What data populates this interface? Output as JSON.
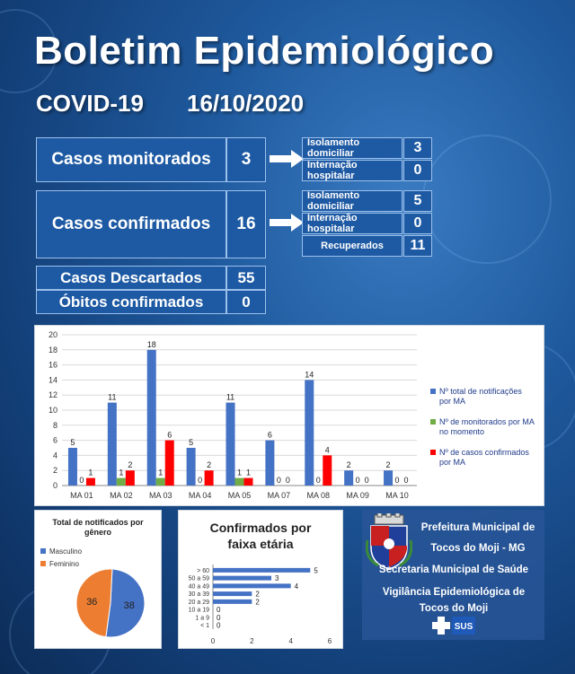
{
  "title": "Boletim Epidemiológico",
  "subtitle_left": "COVID-19",
  "subtitle_date": "16/10/2020",
  "monitorados": {
    "label": "Casos monitorados",
    "value": "3",
    "isolamento_label": "Isolamento domiciliar",
    "isolamento_value": "3",
    "internacao_label": "Internação hospitalar",
    "internacao_value": "0"
  },
  "confirmados": {
    "label": "Casos confirmados",
    "value": "16",
    "isolamento_label": "Isolamento domiciliar",
    "isolamento_value": "5",
    "internacao_label": "Internação hospitalar",
    "internacao_value": "0",
    "recuperados_label": "Recuperados",
    "recuperados_value": "11"
  },
  "descartados": {
    "label": "Casos Descartados",
    "value": "55"
  },
  "obitos": {
    "label": "Óbitos confirmados",
    "value": "0"
  },
  "colors": {
    "blue": "#4472c4",
    "green": "#70ad47",
    "red": "#ff0000",
    "orange": "#ed7d31",
    "bg": "#1f5a9e"
  },
  "chart_data": [
    {
      "type": "bar",
      "categories": [
        "MA 01",
        "MA 02",
        "MA 03",
        "MA 04",
        "MA 05",
        "MA 07",
        "MA 08",
        "MA 09",
        "MA 10"
      ],
      "series": [
        {
          "name": "Nº total de notificações por MA",
          "values": [
            5,
            11,
            18,
            5,
            11,
            6,
            14,
            2,
            2
          ]
        },
        {
          "name": "Nº de monitorados por MA no momento",
          "values": [
            0,
            1,
            1,
            0,
            1,
            0,
            0,
            0,
            0
          ]
        },
        {
          "name": "Nº de casos confirmados por MA",
          "values": [
            1,
            2,
            6,
            2,
            1,
            0,
            4,
            0,
            0
          ]
        }
      ],
      "ylim": [
        0,
        20
      ],
      "yticks": [
        0,
        2,
        4,
        6,
        8,
        10,
        12,
        14,
        16,
        18,
        20
      ],
      "legend": "right"
    },
    {
      "type": "pie",
      "title": "Total de notificados por gênero",
      "labels": [
        "Masculino",
        "Feminino"
      ],
      "values": [
        38,
        36
      ],
      "legend": "top-left"
    },
    {
      "type": "bar",
      "orientation": "horizontal",
      "title": "Confirmados por faixa etária",
      "categories": [
        "> 60",
        "50 a 59",
        "40 a 49",
        "30 a 39",
        "20 a 29",
        "10 a 19",
        "1 a 9",
        "< 1"
      ],
      "values": [
        5,
        3,
        4,
        2,
        2,
        0,
        0,
        0
      ],
      "xlim": [
        0,
        6
      ],
      "xticks": [
        0,
        2,
        4,
        6
      ]
    }
  ],
  "prefeitura": {
    "line1": "Prefeitura Municipal de",
    "line2": "Tocos do Moji - MG",
    "line3": "Secretaria Municipal de Saúde",
    "line4": "Vigilância Epidemiológica de",
    "line5": "Tocos do Moji",
    "sus_logo": "SUS",
    "coat_of_arms": "municipal-coat-of-arms"
  }
}
